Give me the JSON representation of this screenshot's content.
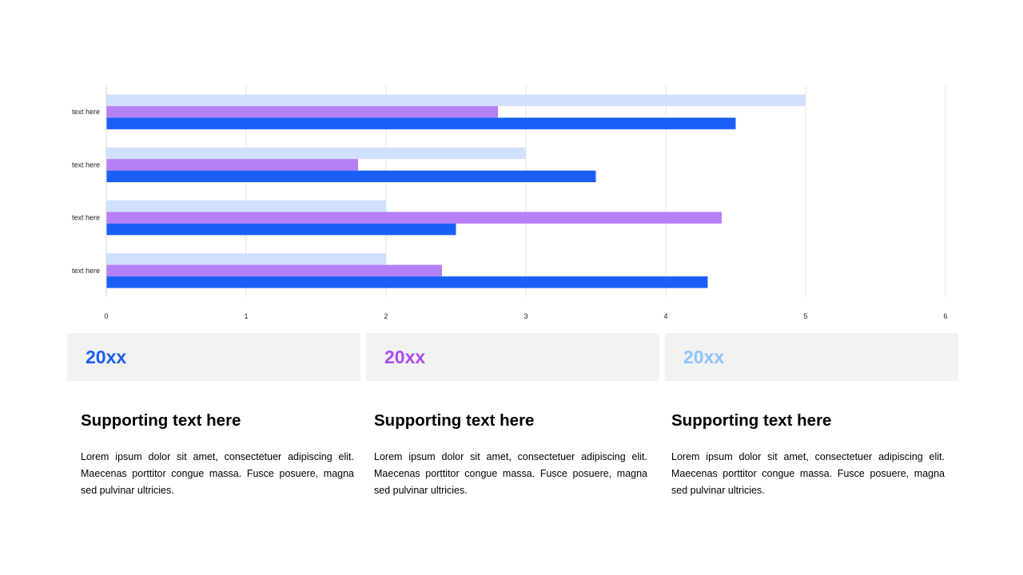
{
  "chart_data": {
    "type": "bar",
    "orientation": "horizontal",
    "categories": [
      "text here",
      "text here",
      "text here",
      "text here"
    ],
    "series": [
      {
        "values": [
          5,
          3,
          2,
          2
        ],
        "color": "#d1e0fd"
      },
      {
        "values": [
          2.8,
          1.8,
          4.4,
          2.4
        ],
        "color": "#b57ff6"
      },
      {
        "values": [
          4.5,
          3.5,
          2.5,
          4.3
        ],
        "color": "#1a5ff5"
      }
    ],
    "xlim": [
      0,
      6
    ],
    "xticks": [
      0,
      1,
      2,
      3,
      4,
      5,
      6
    ],
    "grid": true,
    "grid_color": "#e6e6e6",
    "title": "",
    "xlabel": "",
    "ylabel": ""
  },
  "year_boxes": [
    {
      "label": "20xx",
      "color": "#1a5ff5"
    },
    {
      "label": "20xx",
      "color": "#a84bf2"
    },
    {
      "label": "20xx",
      "color": "#8cc3fb"
    }
  ],
  "columns": [
    {
      "heading": "Supporting text here",
      "body": "Lorem ipsum dolor sit amet, consectetuer adipiscing elit. Maecenas porttitor congue massa. Fusce posuere, magna sed pulvinar ultricies."
    },
    {
      "heading": "Supporting text here",
      "body": "Lorem ipsum dolor sit amet, consectetuer adipiscing elit. Maecenas porttitor congue massa. Fusce posuere, magna sed pulvinar ultricies."
    },
    {
      "heading": "Supporting text here",
      "body": "Lorem ipsum dolor sit amet, consectetuer adipiscing elit. Maecenas porttitor congue massa. Fusce posuere, magna sed pulvinar ultricies."
    }
  ]
}
